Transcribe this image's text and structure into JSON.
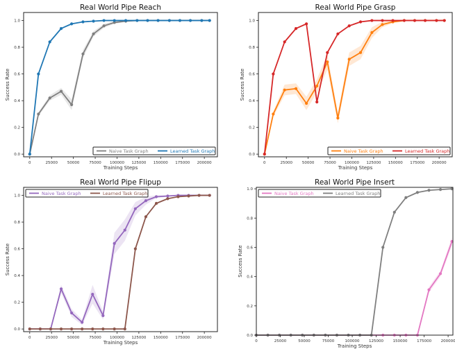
{
  "chart_data": [
    {
      "type": "line",
      "title": "Real World Pipe Reach",
      "xlabel": "Training Steps",
      "ylabel": "Success Rate",
      "xlim": [
        -7000,
        215000
      ],
      "ylim": [
        -0.02,
        1.06
      ],
      "xticks": [
        0,
        25000,
        50000,
        75000,
        100000,
        125000,
        150000,
        175000,
        200000
      ],
      "yticks": [
        0.0,
        0.2,
        0.4,
        0.6,
        0.8,
        1.0
      ],
      "legend_position": "lower-right",
      "series": [
        {
          "name": "Naive Task Graph",
          "color": "#7f7f7f",
          "x": [
            0,
            10000,
            23000,
            36000,
            48000,
            61000,
            73000,
            85000,
            97000,
            110000,
            123000,
            135000,
            147000,
            160000,
            172000,
            184000,
            197000,
            206000
          ],
          "y": [
            0.0,
            0.3,
            0.42,
            0.47,
            0.37,
            0.75,
            0.9,
            0.96,
            0.985,
            0.995,
            1.0,
            1.0,
            1.0,
            1.0,
            1.0,
            1.0,
            1.0,
            1.0
          ],
          "band": [
            0,
            0.015,
            0.02,
            0.025,
            0.04,
            0.03,
            0.02,
            0.015,
            0.01,
            0.005,
            0,
            0,
            0,
            0,
            0,
            0,
            0,
            0
          ]
        },
        {
          "name": "Learned Task Graph",
          "color": "#1f77b4",
          "x": [
            0,
            10000,
            23000,
            36000,
            48000,
            61000,
            73000,
            85000,
            97000,
            110000,
            123000,
            135000,
            147000,
            160000,
            172000,
            184000,
            197000,
            206000
          ],
          "y": [
            0.0,
            0.6,
            0.84,
            0.94,
            0.975,
            0.99,
            0.995,
            1.0,
            1.0,
            1.0,
            1.0,
            1.0,
            1.0,
            1.0,
            1.0,
            1.0,
            1.0,
            1.0
          ]
        }
      ]
    },
    {
      "type": "line",
      "title": "Real World Pipe Grasp",
      "xlabel": "Training Steps",
      "ylabel": "Success Rate",
      "xlim": [
        -7000,
        215000
      ],
      "ylim": [
        -0.02,
        1.06
      ],
      "xticks": [
        0,
        25000,
        50000,
        75000,
        100000,
        125000,
        150000,
        175000,
        200000
      ],
      "yticks": [
        0.0,
        0.2,
        0.4,
        0.6,
        0.8,
        1.0
      ],
      "legend_position": "lower-right",
      "series": [
        {
          "name": "Naive Task Graph",
          "color": "#ff7f0e",
          "x": [
            0,
            10000,
            23000,
            36000,
            48000,
            60000,
            72000,
            84000,
            97000,
            110000,
            123000,
            135000,
            147000,
            160000,
            172000,
            184000,
            197000,
            206000
          ],
          "y": [
            0.0,
            0.3,
            0.48,
            0.49,
            0.38,
            0.51,
            0.69,
            0.27,
            0.71,
            0.76,
            0.91,
            0.97,
            0.99,
            1.0,
            1.0,
            1.0,
            1.0,
            1.0
          ],
          "band": [
            0,
            0.02,
            0.04,
            0.04,
            0.05,
            0.05,
            0.06,
            0.04,
            0.05,
            0.05,
            0.04,
            0.02,
            0.01,
            0.005,
            0,
            0,
            0,
            0
          ]
        },
        {
          "name": "Learned Task Graph",
          "color": "#d62728",
          "x": [
            0,
            10000,
            23000,
            36000,
            48000,
            60000,
            72000,
            84000,
            97000,
            110000,
            123000,
            135000,
            147000,
            160000,
            172000,
            184000,
            197000,
            206000
          ],
          "y": [
            0.0,
            0.6,
            0.84,
            0.94,
            0.975,
            0.39,
            0.76,
            0.9,
            0.96,
            0.99,
            1.0,
            1.0,
            1.0,
            1.0,
            1.0,
            1.0,
            1.0,
            1.0
          ]
        }
      ]
    },
    {
      "type": "line",
      "title": "Real World Pipe Flipup",
      "xlabel": "Training Steps",
      "ylabel": "Success Rate",
      "xlim": [
        -7000,
        215000
      ],
      "ylim": [
        -0.02,
        1.06
      ],
      "xticks": [
        0,
        25000,
        50000,
        75000,
        100000,
        125000,
        150000,
        175000,
        200000
      ],
      "yticks": [
        0.0,
        0.2,
        0.4,
        0.6,
        0.8,
        1.0
      ],
      "legend_position": "top-left",
      "series": [
        {
          "name": "Naive Task Graph",
          "color": "#9467bd",
          "x": [
            0,
            12000,
            24000,
            36000,
            48000,
            60000,
            72000,
            84000,
            97000,
            109000,
            121000,
            133000,
            145000,
            158000,
            170000,
            182000,
            194000,
            206000
          ],
          "y": [
            0.0,
            0.0,
            0.0,
            0.3,
            0.12,
            0.05,
            0.26,
            0.1,
            0.64,
            0.74,
            0.9,
            0.96,
            0.99,
            0.995,
            1.0,
            1.0,
            1.0,
            1.0
          ],
          "band": [
            0,
            0,
            0,
            0.03,
            0.03,
            0.02,
            0.07,
            0.03,
            0.08,
            0.08,
            0.05,
            0.03,
            0.01,
            0.005,
            0,
            0,
            0,
            0
          ]
        },
        {
          "name": "Learned Task Graph",
          "color": "#8c564b",
          "x": [
            0,
            12000,
            24000,
            36000,
            48000,
            60000,
            72000,
            84000,
            97000,
            109000,
            121000,
            133000,
            145000,
            158000,
            170000,
            182000,
            194000,
            206000
          ],
          "y": [
            0.0,
            0.0,
            0.0,
            0.0,
            0.0,
            0.0,
            0.0,
            0.0,
            0.0,
            0.0,
            0.6,
            0.84,
            0.94,
            0.975,
            0.99,
            0.995,
            1.0,
            1.0
          ]
        }
      ]
    },
    {
      "type": "line",
      "title": "Real World Pipe Insert",
      "xlabel": "Training Steps",
      "ylabel": "Success Rate",
      "xlim": [
        0,
        205000
      ],
      "ylim": [
        0.0,
        1.01
      ],
      "xticks": [
        0,
        25000,
        50000,
        75000,
        100000,
        125000,
        150000,
        175000,
        200000
      ],
      "yticks": [
        0.0,
        0.2,
        0.4,
        0.6,
        0.8,
        1.0
      ],
      "legend_position": "top-left",
      "series": [
        {
          "name": "Naive Task Graph",
          "color": "#e377c2",
          "x": [
            0,
            12000,
            24000,
            36000,
            48000,
            60000,
            72000,
            84000,
            96000,
            108000,
            120000,
            132000,
            144000,
            156000,
            168000,
            180000,
            192000,
            204000
          ],
          "y": [
            0,
            0,
            0,
            0,
            0,
            0,
            0,
            0,
            0,
            0,
            0,
            0,
            0,
            0,
            0,
            0.31,
            0.42,
            0.64
          ],
          "band": [
            0,
            0,
            0,
            0,
            0,
            0,
            0,
            0,
            0,
            0,
            0,
            0,
            0,
            0,
            0,
            0.02,
            0.02,
            0.03
          ]
        },
        {
          "name": "Learned Task Graph",
          "color": "#7f7f7f",
          "x": [
            0,
            12000,
            24000,
            36000,
            48000,
            60000,
            72000,
            84000,
            96000,
            108000,
            120000,
            132000,
            144000,
            156000,
            168000,
            180000,
            192000,
            204000
          ],
          "y": [
            0,
            0,
            0,
            0,
            0,
            0,
            0,
            0,
            0,
            0,
            0,
            0.6,
            0.84,
            0.94,
            0.975,
            0.99,
            0.995,
            1.0
          ]
        }
      ]
    }
  ]
}
